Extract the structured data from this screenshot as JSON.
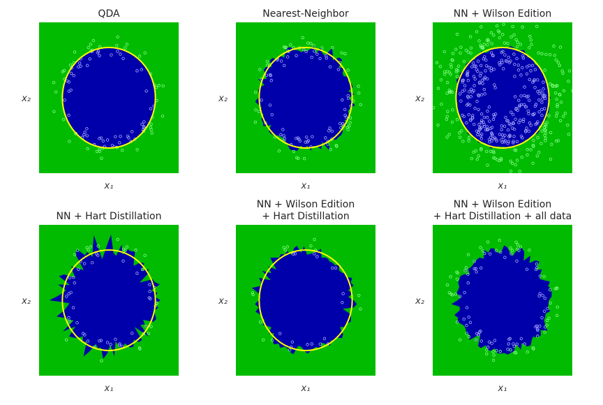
{
  "colors": {
    "outer_region": "#00bb00",
    "inner_region": "#0000aa",
    "boundary_circle": "#ffff00",
    "outer_points_edge": "#88ff88",
    "inner_points_edge": "#aaaaff"
  },
  "chart_data": [
    {
      "type": "scatter",
      "title": "QDA",
      "xlabel": "x₁",
      "ylabel": "x₂",
      "xlim": [
        -3,
        3
      ],
      "ylim": [
        -3,
        3
      ],
      "show_true_boundary": true,
      "true_boundary": {
        "shape": "circle",
        "center": [
          0,
          0
        ],
        "radius": 2
      },
      "decision_region": {
        "shape": "circle",
        "center": [
          0,
          0
        ],
        "radius": 2,
        "jaggedness": 0
      },
      "points": {
        "class_inner": "radius < 2",
        "class_outer": "2 <= radius <= 3",
        "approx_count": 500,
        "subset": "all"
      }
    },
    {
      "type": "scatter",
      "title": "Nearest-Neighbor",
      "xlabel": "x₁",
      "ylabel": "x₂",
      "xlim": [
        -3,
        3
      ],
      "ylim": [
        -3,
        3
      ],
      "show_true_boundary": true,
      "true_boundary": {
        "shape": "circle",
        "center": [
          0,
          0
        ],
        "radius": 2
      },
      "decision_region": {
        "shape": "irregular",
        "center": [
          0,
          0
        ],
        "radius": 2,
        "jaggedness": 0.18
      },
      "points": {
        "class_inner": "radius < 2",
        "class_outer": "2 <= radius <= 3",
        "approx_count": 500,
        "subset": "all"
      }
    },
    {
      "type": "scatter",
      "title": "NN + Wilson Edition",
      "xlabel": "x₁",
      "ylabel": "x₂",
      "xlim": [
        -3,
        3
      ],
      "ylim": [
        -3,
        3
      ],
      "show_true_boundary": true,
      "true_boundary": {
        "shape": "circle",
        "center": [
          0,
          0
        ],
        "radius": 2
      },
      "decision_region": {
        "shape": "irregular",
        "center": [
          0,
          0
        ],
        "radius": 2,
        "jaggedness": 0.08
      },
      "points": {
        "class_inner": "radius < 2",
        "class_outer": "2 <= radius <= 3",
        "approx_count": 450,
        "subset": "wilson-edited"
      }
    },
    {
      "type": "scatter",
      "title": "NN + Hart Distillation",
      "xlabel": "x₁",
      "ylabel": "x₂",
      "xlim": [
        -3,
        3
      ],
      "ylim": [
        -3,
        3
      ],
      "show_true_boundary": true,
      "true_boundary": {
        "shape": "circle",
        "center": [
          0,
          0
        ],
        "radius": 2
      },
      "decision_region": {
        "shape": "irregular",
        "center": [
          0,
          0
        ],
        "radius": 2,
        "jaggedness": 0.35
      },
      "points": {
        "class_inner": "radius < 2",
        "class_outer": "2 <= radius <= 3",
        "approx_count": 60,
        "subset": "hart-distilled"
      }
    },
    {
      "type": "scatter",
      "title": "NN + Wilson Edition\n + Hart Distillation",
      "xlabel": "x₁",
      "ylabel": "x₂",
      "xlim": [
        -3,
        3
      ],
      "ylim": [
        -3,
        3
      ],
      "show_true_boundary": true,
      "true_boundary": {
        "shape": "circle",
        "center": [
          0,
          0
        ],
        "radius": 2
      },
      "decision_region": {
        "shape": "irregular",
        "center": [
          0,
          0
        ],
        "radius": 2,
        "jaggedness": 0.22
      },
      "points": {
        "class_inner": "radius < 2",
        "class_outer": "2 <= radius <= 3",
        "approx_count": 30,
        "subset": "wilson-then-hart"
      }
    },
    {
      "type": "scatter",
      "title": "NN + Wilson Edition\n+ Hart Distillation + all data",
      "xlabel": "x₁",
      "ylabel": "x₂",
      "xlim": [
        -3,
        3
      ],
      "ylim": [
        -3,
        3
      ],
      "show_true_boundary": false,
      "true_boundary": {
        "shape": "circle",
        "center": [
          0,
          0
        ],
        "radius": 2
      },
      "decision_region": {
        "shape": "irregular",
        "center": [
          0,
          0
        ],
        "radius": 2,
        "jaggedness": 0.22
      },
      "points": {
        "class_inner": "radius < 2",
        "class_outer": "2 <= radius <= 3",
        "approx_count": 500,
        "subset": "all"
      }
    }
  ]
}
